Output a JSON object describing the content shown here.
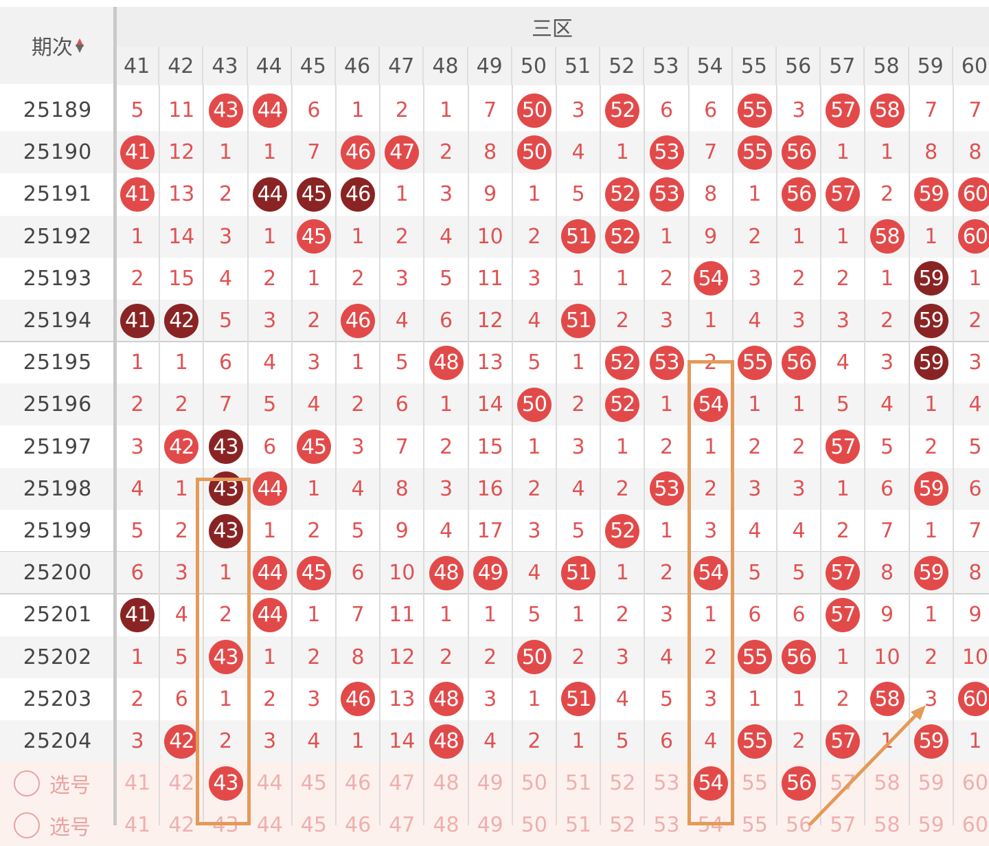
{
  "header": {
    "period_label": "期次",
    "zone_label": "三区",
    "columns": [
      "41",
      "42",
      "43",
      "44",
      "45",
      "46",
      "47",
      "48",
      "49",
      "50",
      "51",
      "52",
      "53",
      "54",
      "55",
      "56",
      "57",
      "58",
      "59",
      "60"
    ]
  },
  "rows": [
    {
      "period": "25189",
      "cells": [
        "5",
        "11",
        "43",
        "44",
        "6",
        "1",
        "2",
        "1",
        "7",
        "50",
        "3",
        "52",
        "6",
        "6",
        "55",
        "3",
        "57",
        "58",
        "7",
        "7"
      ],
      "hits": [
        {
          "col": 2,
          "type": "red"
        },
        {
          "col": 3,
          "type": "red"
        },
        {
          "col": 9,
          "type": "red"
        },
        {
          "col": 11,
          "type": "red"
        },
        {
          "col": 14,
          "type": "red"
        },
        {
          "col": 16,
          "type": "red"
        },
        {
          "col": 17,
          "type": "red"
        }
      ]
    },
    {
      "period": "25190",
      "cells": [
        "41",
        "12",
        "1",
        "1",
        "7",
        "46",
        "47",
        "2",
        "8",
        "50",
        "4",
        "1",
        "53",
        "7",
        "55",
        "56",
        "1",
        "1",
        "8",
        "8"
      ],
      "hits": [
        {
          "col": 0,
          "type": "red"
        },
        {
          "col": 5,
          "type": "red"
        },
        {
          "col": 6,
          "type": "red"
        },
        {
          "col": 9,
          "type": "red"
        },
        {
          "col": 12,
          "type": "red"
        },
        {
          "col": 14,
          "type": "red"
        },
        {
          "col": 15,
          "type": "red"
        }
      ]
    },
    {
      "period": "25191",
      "cells": [
        "41",
        "13",
        "2",
        "44",
        "45",
        "46",
        "1",
        "3",
        "9",
        "1",
        "5",
        "52",
        "53",
        "8",
        "1",
        "56",
        "57",
        "2",
        "59",
        "60"
      ],
      "hits": [
        {
          "col": 0,
          "type": "red"
        },
        {
          "col": 3,
          "type": "dark"
        },
        {
          "col": 4,
          "type": "dark"
        },
        {
          "col": 5,
          "type": "dark"
        },
        {
          "col": 11,
          "type": "red"
        },
        {
          "col": 12,
          "type": "red"
        },
        {
          "col": 15,
          "type": "red"
        },
        {
          "col": 16,
          "type": "red"
        },
        {
          "col": 18,
          "type": "red"
        },
        {
          "col": 19,
          "type": "red"
        }
      ]
    },
    {
      "period": "25192",
      "cells": [
        "1",
        "14",
        "3",
        "1",
        "45",
        "1",
        "2",
        "4",
        "10",
        "2",
        "51",
        "52",
        "1",
        "9",
        "2",
        "1",
        "1",
        "58",
        "1",
        "60"
      ],
      "hits": [
        {
          "col": 4,
          "type": "red"
        },
        {
          "col": 10,
          "type": "red"
        },
        {
          "col": 11,
          "type": "red"
        },
        {
          "col": 17,
          "type": "red"
        },
        {
          "col": 19,
          "type": "red"
        }
      ]
    },
    {
      "period": "25193",
      "cells": [
        "2",
        "15",
        "4",
        "2",
        "1",
        "2",
        "3",
        "5",
        "11",
        "3",
        "1",
        "1",
        "2",
        "54",
        "3",
        "2",
        "2",
        "1",
        "59",
        "1"
      ],
      "hits": [
        {
          "col": 13,
          "type": "red"
        },
        {
          "col": 18,
          "type": "dark"
        }
      ]
    },
    {
      "period": "25194",
      "cells": [
        "41",
        "42",
        "5",
        "3",
        "2",
        "46",
        "4",
        "6",
        "12",
        "4",
        "51",
        "2",
        "3",
        "1",
        "4",
        "3",
        "3",
        "2",
        "59",
        "2"
      ],
      "hits": [
        {
          "col": 0,
          "type": "dark"
        },
        {
          "col": 1,
          "type": "dark"
        },
        {
          "col": 5,
          "type": "red"
        },
        {
          "col": 10,
          "type": "red"
        },
        {
          "col": 18,
          "type": "dark"
        }
      ]
    },
    {
      "period": "25195",
      "cells": [
        "1",
        "1",
        "6",
        "4",
        "3",
        "1",
        "5",
        "48",
        "13",
        "5",
        "1",
        "52",
        "53",
        "2",
        "55",
        "56",
        "4",
        "3",
        "59",
        "3"
      ],
      "hits": [
        {
          "col": 7,
          "type": "red"
        },
        {
          "col": 11,
          "type": "red"
        },
        {
          "col": 12,
          "type": "red"
        },
        {
          "col": 14,
          "type": "red"
        },
        {
          "col": 15,
          "type": "red"
        },
        {
          "col": 18,
          "type": "dark"
        }
      ]
    },
    {
      "period": "25196",
      "cells": [
        "2",
        "2",
        "7",
        "5",
        "4",
        "2",
        "6",
        "1",
        "14",
        "50",
        "2",
        "52",
        "1",
        "54",
        "1",
        "1",
        "5",
        "4",
        "1",
        "4"
      ],
      "hits": [
        {
          "col": 9,
          "type": "red"
        },
        {
          "col": 11,
          "type": "red"
        },
        {
          "col": 13,
          "type": "red"
        }
      ]
    },
    {
      "period": "25197",
      "cells": [
        "3",
        "42",
        "43",
        "6",
        "45",
        "3",
        "7",
        "2",
        "15",
        "1",
        "3",
        "1",
        "2",
        "1",
        "2",
        "2",
        "57",
        "5",
        "2",
        "5"
      ],
      "hits": [
        {
          "col": 1,
          "type": "red"
        },
        {
          "col": 2,
          "type": "dark"
        },
        {
          "col": 4,
          "type": "red"
        },
        {
          "col": 16,
          "type": "red"
        }
      ]
    },
    {
      "period": "25198",
      "cells": [
        "4",
        "1",
        "43",
        "44",
        "1",
        "4",
        "8",
        "3",
        "16",
        "2",
        "4",
        "2",
        "53",
        "2",
        "3",
        "3",
        "1",
        "6",
        "59",
        "6"
      ],
      "hits": [
        {
          "col": 2,
          "type": "dark"
        },
        {
          "col": 3,
          "type": "red"
        },
        {
          "col": 12,
          "type": "red"
        },
        {
          "col": 18,
          "type": "red"
        }
      ]
    },
    {
      "period": "25199",
      "cells": [
        "5",
        "2",
        "43",
        "1",
        "2",
        "5",
        "9",
        "4",
        "17",
        "3",
        "5",
        "52",
        "1",
        "3",
        "4",
        "4",
        "2",
        "7",
        "1",
        "7"
      ],
      "hits": [
        {
          "col": 2,
          "type": "dark"
        },
        {
          "col": 11,
          "type": "red"
        }
      ]
    },
    {
      "period": "25200",
      "cells": [
        "6",
        "3",
        "1",
        "44",
        "45",
        "6",
        "10",
        "48",
        "49",
        "4",
        "51",
        "1",
        "2",
        "54",
        "5",
        "5",
        "57",
        "8",
        "59",
        "8"
      ],
      "hits": [
        {
          "col": 3,
          "type": "red"
        },
        {
          "col": 4,
          "type": "red"
        },
        {
          "col": 7,
          "type": "red"
        },
        {
          "col": 8,
          "type": "red"
        },
        {
          "col": 10,
          "type": "red"
        },
        {
          "col": 13,
          "type": "red"
        },
        {
          "col": 16,
          "type": "red"
        },
        {
          "col": 18,
          "type": "red"
        }
      ]
    },
    {
      "period": "25201",
      "cells": [
        "41",
        "4",
        "2",
        "44",
        "1",
        "7",
        "11",
        "1",
        "1",
        "5",
        "1",
        "2",
        "3",
        "1",
        "6",
        "6",
        "57",
        "9",
        "1",
        "9"
      ],
      "hits": [
        {
          "col": 0,
          "type": "dark"
        },
        {
          "col": 3,
          "type": "red"
        },
        {
          "col": 16,
          "type": "red"
        }
      ]
    },
    {
      "period": "25202",
      "cells": [
        "1",
        "5",
        "43",
        "1",
        "2",
        "8",
        "12",
        "2",
        "2",
        "50",
        "2",
        "3",
        "4",
        "2",
        "55",
        "56",
        "1",
        "10",
        "2",
        "10"
      ],
      "hits": [
        {
          "col": 2,
          "type": "red"
        },
        {
          "col": 9,
          "type": "red"
        },
        {
          "col": 14,
          "type": "red"
        },
        {
          "col": 15,
          "type": "red"
        }
      ]
    },
    {
      "period": "25203",
      "cells": [
        "2",
        "6",
        "1",
        "2",
        "3",
        "46",
        "13",
        "48",
        "3",
        "1",
        "51",
        "4",
        "5",
        "3",
        "1",
        "1",
        "2",
        "58",
        "3",
        "60"
      ],
      "hits": [
        {
          "col": 5,
          "type": "red"
        },
        {
          "col": 7,
          "type": "red"
        },
        {
          "col": 10,
          "type": "red"
        },
        {
          "col": 17,
          "type": "red"
        },
        {
          "col": 19,
          "type": "red"
        }
      ]
    },
    {
      "period": "25204",
      "cells": [
        "3",
        "42",
        "2",
        "3",
        "4",
        "1",
        "14",
        "48",
        "4",
        "2",
        "1",
        "5",
        "6",
        "4",
        "55",
        "2",
        "57",
        "1",
        "59",
        "1"
      ],
      "hits": [
        {
          "col": 1,
          "type": "red"
        },
        {
          "col": 7,
          "type": "red"
        },
        {
          "col": 14,
          "type": "red"
        },
        {
          "col": 16,
          "type": "red"
        },
        {
          "col": 18,
          "type": "red"
        }
      ]
    }
  ],
  "pick_rows": [
    {
      "label": "选号",
      "numbers": [
        "41",
        "42",
        "43",
        "44",
        "45",
        "46",
        "47",
        "48",
        "49",
        "50",
        "51",
        "52",
        "53",
        "54",
        "55",
        "56",
        "57",
        "58",
        "59",
        "60"
      ],
      "selected": [
        2,
        13,
        15
      ]
    },
    {
      "label": "选号",
      "numbers": [
        "41",
        "42",
        "43",
        "44",
        "45",
        "46",
        "47",
        "48",
        "49",
        "50",
        "51",
        "52",
        "53",
        "54",
        "55",
        "56",
        "57",
        "58",
        "59",
        "60"
      ],
      "selected": []
    }
  ],
  "colors": {
    "hit": "#e24a4a",
    "repeat_hit": "#8a2424",
    "miss_text": "#e05252",
    "annotation": "#e49a58"
  }
}
